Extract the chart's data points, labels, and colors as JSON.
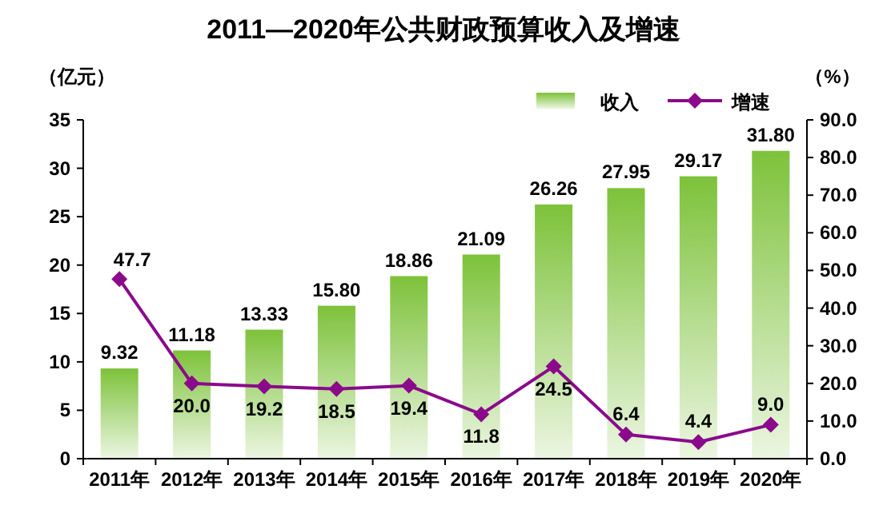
{
  "chart_data": {
    "type": "bar",
    "title": "2011—2020年公共财政预算收入及增速",
    "ylabel": "（亿元）",
    "y2label": "（%）",
    "categories": [
      "2011年",
      "2012年",
      "2013年",
      "2014年",
      "2015年",
      "2016年",
      "2017年",
      "2018年",
      "2019年",
      "2020年"
    ],
    "series": [
      {
        "name": "收入",
        "color": "#7dc23a",
        "values": [
          9.32,
          11.18,
          13.33,
          15.8,
          18.86,
          21.09,
          26.26,
          27.95,
          29.17,
          31.8
        ],
        "value_labels": [
          "9.32",
          "11.18",
          "13.33",
          "15.80",
          "18.86",
          "21.09",
          "26.26",
          "27.95",
          "29.17",
          "31.80"
        ]
      },
      {
        "name": "增速",
        "type": "line",
        "axis": "y2",
        "color": "#8b0a8b",
        "values": [
          47.7,
          20.0,
          19.2,
          18.5,
          19.4,
          11.8,
          24.5,
          6.4,
          4.4,
          9.0
        ],
        "value_labels": [
          "47.7",
          "20.0",
          "19.2",
          "18.5",
          "19.4",
          "11.8",
          "24.5",
          "6.4",
          "4.4",
          "9.0"
        ]
      }
    ],
    "marker": "diamond",
    "ylim": [
      0,
      35
    ],
    "yticks": [
      0,
      5,
      10,
      15,
      20,
      25,
      30,
      35
    ],
    "y2lim": [
      0,
      90
    ],
    "y2ticks": [
      {
        "value": 0,
        "label": "0.0"
      },
      {
        "value": 10,
        "label": "10.0"
      },
      {
        "value": 20,
        "label": "20.0"
      },
      {
        "value": 30,
        "label": "30.0"
      },
      {
        "value": 40,
        "label": "40.0"
      },
      {
        "value": 50,
        "label": "50.0"
      },
      {
        "value": 60,
        "label": "60.0"
      },
      {
        "value": 70,
        "label": "70.0"
      },
      {
        "value": 80,
        "label": "80.0"
      },
      {
        "value": 90,
        "label": "90.0"
      }
    ],
    "legend": "top right"
  }
}
